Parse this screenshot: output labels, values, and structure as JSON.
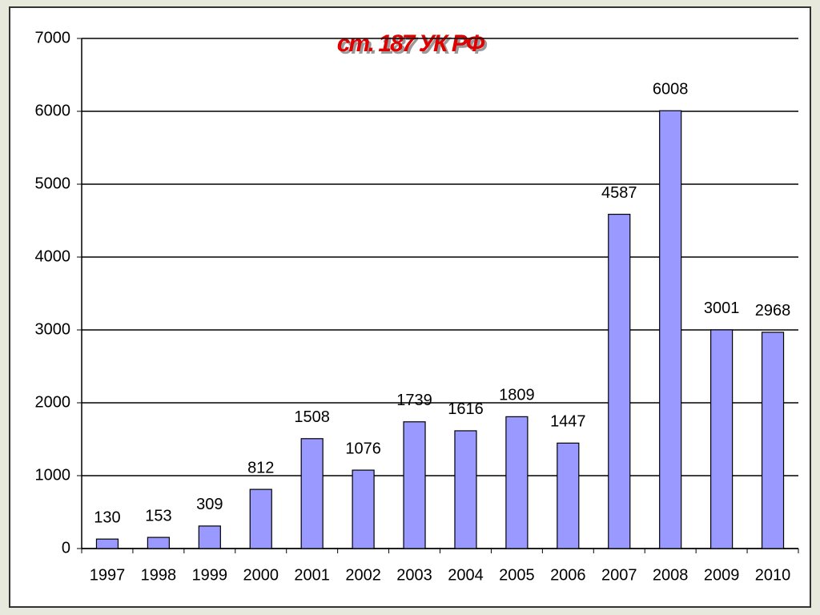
{
  "chart_data": {
    "type": "bar",
    "title": "ст. 187 УК РФ",
    "categories": [
      "1997",
      "1998",
      "1999",
      "2000",
      "2001",
      "2002",
      "2003",
      "2004",
      "2005",
      "2006",
      "2007",
      "2008",
      "2009",
      "2010"
    ],
    "values": [
      130,
      153,
      309,
      812,
      1508,
      1076,
      1739,
      1616,
      1809,
      1447,
      4587,
      6008,
      3001,
      2968
    ],
    "color": "#9999ff",
    "ylim": [
      0,
      7000
    ],
    "yticks": [
      0,
      1000,
      2000,
      3000,
      4000,
      5000,
      6000,
      7000
    ],
    "grid": true
  }
}
